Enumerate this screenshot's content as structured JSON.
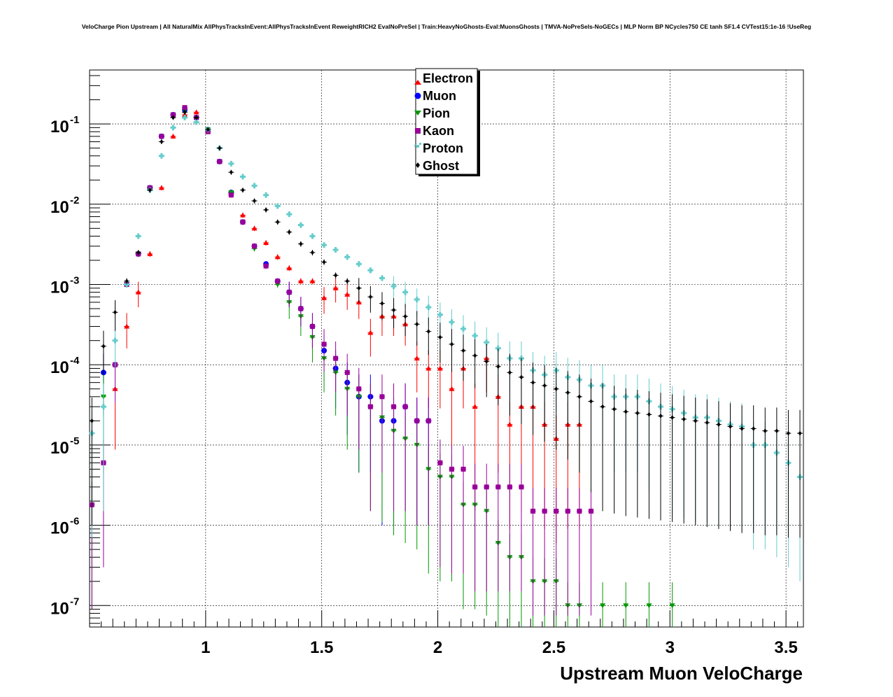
{
  "chart_data": {
    "type": "scatter",
    "title": "VeloCharge Pion Upstream | All NaturalMix AllPhysTracksInEvent:AllPhysTracksInEvent ReweightRICH2 EvalNoPreSel | Train:HeavyNoGhosts-Eval:MuonsGhosts | TMVA-NoPreSels-NoGECs | MLP Norm BP NCycles750 CE tanh SF1.4 CVTest15:1e-16 !UseReg",
    "xlabel": "Upstream Muon VeloCharge",
    "ylabel": "",
    "xlim": [
      0.5,
      3.575
    ],
    "ylim": [
      5.4e-08,
      0.47
    ],
    "yscale": "log",
    "grid": true,
    "legend_position": "top-center",
    "xticks": [
      "1",
      "1.5",
      "2",
      "2.5",
      "3",
      "3.5"
    ],
    "xtick_values": [
      1,
      1.5,
      2,
      2.5,
      3,
      3.5
    ],
    "yticks": [
      {
        "value": 1e-07,
        "base": "10",
        "exp": "-7"
      },
      {
        "value": 1e-06,
        "base": "10",
        "exp": "-6"
      },
      {
        "value": 1e-05,
        "base": "10",
        "exp": "-5"
      },
      {
        "value": 0.0001,
        "base": "10",
        "exp": "-4"
      },
      {
        "value": 0.001,
        "base": "10",
        "exp": "-3"
      },
      {
        "value": 0.01,
        "base": "10",
        "exp": "-2"
      },
      {
        "value": 0.1,
        "base": "10",
        "exp": "-1"
      }
    ],
    "series": [
      {
        "name": "Electron",
        "color": "#ff0000",
        "marker": "triangle-up",
        "label_key": "electron",
        "x": [
          0.61,
          0.66,
          0.71,
          0.76,
          0.81,
          0.86,
          0.91,
          0.96,
          1.01,
          1.06,
          1.11,
          1.16,
          1.21,
          1.26,
          1.31,
          1.36,
          1.41,
          1.46,
          1.51,
          1.56,
          1.61,
          1.66,
          1.71,
          1.76,
          1.81,
          1.86,
          1.91,
          1.96,
          2.01,
          2.06,
          2.11,
          2.16,
          2.21,
          2.26,
          2.31,
          2.36,
          2.41,
          2.46,
          2.51,
          2.56,
          2.61
        ],
        "y": [
          5e-05,
          0.0003,
          0.0008,
          0.0024,
          0.016,
          0.07,
          0.13,
          0.14,
          0.08,
          0.034,
          0.014,
          0.0073,
          0.005,
          0.0033,
          0.0022,
          0.0016,
          0.0011,
          0.0011,
          0.00068,
          0.0009,
          0.00075,
          0.0006,
          0.00025,
          0.0004,
          0.0004,
          0.00032,
          0.00012,
          9e-05,
          9e-05,
          5e-05,
          9e-05,
          3e-05,
          0.00012,
          4e-05,
          1.8e-05,
          3e-05,
          3e-05,
          1.8e-05,
          1.2e-05,
          1.8e-05,
          1.8e-05
        ]
      },
      {
        "name": "Muon",
        "color": "#0000ff",
        "marker": "circle",
        "label_key": "muon",
        "x": [
          0.56,
          0.61,
          0.66,
          0.71,
          0.76,
          0.81,
          0.86,
          0.91,
          0.96,
          1.01,
          1.06,
          1.11,
          1.16,
          1.21,
          1.26,
          1.31,
          1.36,
          1.41,
          1.46,
          1.51,
          1.56,
          1.61,
          1.66,
          1.71,
          1.76,
          1.81,
          1.86,
          1.91,
          1.96
        ],
        "y": [
          8e-05,
          0.0001,
          0.001,
          0.0024,
          0.016,
          0.07,
          0.13,
          0.15,
          0.12,
          0.085,
          0.034,
          0.014,
          0.006,
          0.003,
          0.0018,
          0.0011,
          0.0008,
          0.0005,
          0.0003,
          0.00015,
          9e-05,
          6e-05,
          4e-05,
          4e-05,
          2e-05,
          2e-05,
          3e-05,
          2e-05,
          2e-05
        ]
      },
      {
        "name": "Pion",
        "color": "#009900",
        "marker": "triangle-down",
        "label_key": "pion",
        "x": [
          0.51,
          0.56,
          0.61,
          0.66,
          0.71,
          0.76,
          0.81,
          0.86,
          0.91,
          0.96,
          1.01,
          1.06,
          1.11,
          1.16,
          1.21,
          1.26,
          1.31,
          1.36,
          1.41,
          1.46,
          1.51,
          1.56,
          1.61,
          1.66,
          1.71,
          1.76,
          1.81,
          1.86,
          1.91,
          1.96,
          2.01,
          2.06,
          2.11,
          2.16,
          2.21,
          2.26,
          2.31,
          2.36,
          2.41,
          2.46,
          2.51,
          2.56,
          2.61,
          2.71,
          2.81,
          2.91,
          3.01
        ],
        "y": [
          1.8e-06,
          4e-05,
          0.0001,
          0.001,
          0.0024,
          0.016,
          0.07,
          0.13,
          0.15,
          0.12,
          0.085,
          0.034,
          0.014,
          0.006,
          0.0028,
          0.0017,
          0.001,
          0.0006,
          0.0004,
          0.00022,
          0.00012,
          8e-05,
          5e-05,
          4e-05,
          3e-05,
          2.2e-05,
          1.5e-05,
          1.2e-05,
          1e-05,
          5e-06,
          4e-06,
          4e-06,
          1.8e-06,
          1.8e-06,
          1.5e-06,
          6e-07,
          4e-07,
          4e-07,
          2e-07,
          2e-07,
          2e-07,
          1e-07,
          1e-07,
          1e-07,
          1e-07,
          1e-07,
          1e-07
        ]
      },
      {
        "name": "Kaon",
        "color": "#990099",
        "marker": "square",
        "label_key": "kaon",
        "x": [
          0.51,
          0.56,
          0.61,
          0.66,
          0.71,
          0.76,
          0.81,
          0.86,
          0.91,
          0.96,
          1.01,
          1.06,
          1.11,
          1.16,
          1.21,
          1.26,
          1.31,
          1.36,
          1.41,
          1.46,
          1.51,
          1.56,
          1.61,
          1.66,
          1.71,
          1.76,
          1.81,
          1.86,
          1.91,
          1.96,
          2.01,
          2.06,
          2.11,
          2.16,
          2.21,
          2.26,
          2.31,
          2.36,
          2.41,
          2.46,
          2.51,
          2.56,
          2.61,
          2.66
        ],
        "y": [
          1.8e-06,
          6e-06,
          0.0001,
          0.001,
          0.0024,
          0.016,
          0.07,
          0.13,
          0.16,
          0.12,
          0.08,
          0.034,
          0.013,
          0.006,
          0.003,
          0.0017,
          0.0011,
          0.0008,
          0.0005,
          0.0003,
          0.00018,
          0.00012,
          8e-05,
          5e-05,
          3e-05,
          4e-05,
          3e-05,
          3e-05,
          2e-05,
          2e-05,
          6e-06,
          5e-06,
          5e-06,
          3e-06,
          3e-06,
          3e-06,
          3e-06,
          3e-06,
          1.5e-06,
          1.5e-06,
          1.5e-06,
          1.5e-06,
          1.5e-06,
          1.5e-06
        ]
      },
      {
        "name": "Proton",
        "color": "#66cccc",
        "marker": "cross",
        "label_key": "proton",
        "x": [
          0.51,
          0.56,
          0.61,
          0.66,
          0.71,
          0.76,
          0.81,
          0.86,
          0.91,
          0.96,
          1.01,
          1.06,
          1.11,
          1.16,
          1.21,
          1.26,
          1.31,
          1.36,
          1.41,
          1.46,
          1.51,
          1.56,
          1.61,
          1.66,
          1.71,
          1.76,
          1.81,
          1.86,
          1.91,
          1.96,
          2.01,
          2.06,
          2.11,
          2.16,
          2.21,
          2.26,
          2.31,
          2.36,
          2.41,
          2.46,
          2.51,
          2.56,
          2.61,
          2.66,
          2.71,
          2.76,
          2.81,
          2.86,
          2.91,
          2.96,
          3.01,
          3.06,
          3.11,
          3.16,
          3.21,
          3.26,
          3.31,
          3.36,
          3.41,
          3.46,
          3.51,
          3.56
        ],
        "y": [
          1.4e-05,
          3e-05,
          0.0002,
          0.001,
          0.004,
          0.015,
          0.04,
          0.09,
          0.12,
          0.105,
          0.085,
          0.05,
          0.032,
          0.022,
          0.017,
          0.013,
          0.0095,
          0.0075,
          0.0055,
          0.004,
          0.0031,
          0.0027,
          0.0022,
          0.0018,
          0.0015,
          0.0012,
          0.00095,
          0.0008,
          0.00065,
          0.00052,
          0.00042,
          0.00034,
          0.00028,
          0.00023,
          0.00019,
          0.00016,
          0.00012,
          0.00012,
          8.5e-05,
          7.5e-05,
          8.5e-05,
          7e-05,
          6.5e-05,
          5.5e-05,
          5.5e-05,
          4e-05,
          4e-05,
          4e-05,
          3.5e-05,
          3e-05,
          2.8e-05,
          2.5e-05,
          2.2e-05,
          2.2e-05,
          2e-05,
          1.8e-05,
          1.7e-05,
          1e-05,
          1e-05,
          8e-06,
          6e-06,
          4e-06
        ]
      },
      {
        "name": "Ghost",
        "color": "#000000",
        "marker": "diamond",
        "label_key": "ghost",
        "x": [
          0.51,
          0.56,
          0.61,
          0.66,
          0.71,
          0.76,
          0.81,
          0.86,
          0.91,
          0.96,
          1.01,
          1.06,
          1.11,
          1.16,
          1.21,
          1.26,
          1.31,
          1.36,
          1.41,
          1.46,
          1.51,
          1.56,
          1.61,
          1.66,
          1.71,
          1.76,
          1.81,
          1.86,
          1.91,
          1.96,
          2.01,
          2.06,
          2.11,
          2.16,
          2.21,
          2.26,
          2.31,
          2.36,
          2.41,
          2.46,
          2.51,
          2.56,
          2.61,
          2.66,
          2.71,
          2.76,
          2.81,
          2.86,
          2.91,
          2.96,
          3.01,
          3.06,
          3.11,
          3.16,
          3.21,
          3.26,
          3.31,
          3.36,
          3.41,
          3.46,
          3.51,
          3.56
        ],
        "y": [
          2e-05,
          0.00017,
          0.00045,
          0.0011,
          0.0025,
          0.015,
          0.06,
          0.12,
          0.14,
          0.12,
          0.085,
          0.05,
          0.025,
          0.015,
          0.011,
          0.0085,
          0.006,
          0.0045,
          0.0032,
          0.0025,
          0.0019,
          0.0013,
          0.0011,
          0.0009,
          0.0007,
          0.00058,
          0.00048,
          0.0004,
          0.00032,
          0.00026,
          0.00022,
          0.00018,
          0.00015,
          0.00013,
          0.00011,
          9.5e-05,
          8e-05,
          7e-05,
          6e-05,
          5.5e-05,
          5e-05,
          4.5e-05,
          4e-05,
          3.5e-05,
          3e-05,
          2.8e-05,
          2.6e-05,
          2.5e-05,
          2.4e-05,
          2.3e-05,
          2.2e-05,
          2.1e-05,
          2e-05,
          1.9e-05,
          1.8e-05,
          1.7e-05,
          1.6e-05,
          1.6e-05,
          1.5e-05,
          1.5e-05,
          1.4e-05,
          1.4e-05
        ]
      }
    ]
  },
  "legend": {
    "electron": "Electron",
    "muon": "Muon",
    "pion": "Pion",
    "kaon": "Kaon",
    "proton": "Proton",
    "ghost": "Ghost"
  }
}
